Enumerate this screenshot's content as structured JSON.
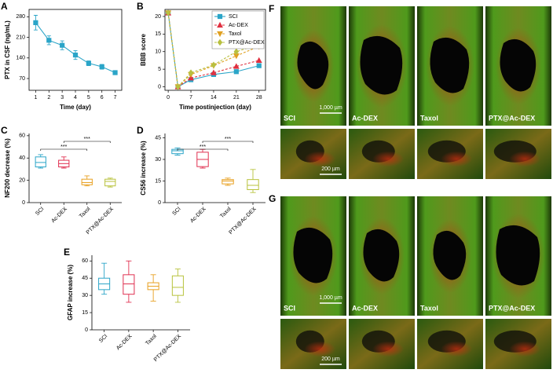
{
  "chart_data": [
    {
      "panel": "A",
      "type": "line",
      "xlabel": "Time (day)",
      "ylabel": "PTX in CSF (ng/mL)",
      "x": [
        1,
        2,
        3,
        4,
        5,
        6,
        7
      ],
      "series": [
        {
          "color": "#2ba5c8",
          "marker": "square",
          "values": [
            260,
            200,
            183,
            150,
            122,
            110,
            90
          ],
          "errors": [
            25,
            15,
            15,
            15,
            8,
            8,
            5
          ]
        }
      ],
      "xlim": [
        0.5,
        7.5
      ],
      "xticks": [
        1,
        2,
        3,
        4,
        5,
        6,
        7
      ],
      "ylim": [
        30,
        305
      ],
      "yticks": [
        70,
        140,
        210,
        280
      ]
    },
    {
      "panel": "B",
      "type": "line",
      "xlabel": "Time postinjection (day)",
      "ylabel": "BBB score",
      "x": [
        0,
        3,
        7,
        14,
        21,
        28
      ],
      "legend": "upper right",
      "series": [
        {
          "name": "SCI",
          "color": "#2ba5c8",
          "marker": "square",
          "linestyle": "solid",
          "values": [
            21,
            0,
            2,
            3.5,
            4.3,
            6
          ]
        },
        {
          "name": "Ac-DEX",
          "color": "#e03040",
          "marker": "triangle",
          "linestyle": "dashed",
          "values": [
            21,
            0,
            2.5,
            4,
            5.8,
            7.5
          ]
        },
        {
          "name": "Taxol",
          "color": "#e0a020",
          "marker": "triangle-down",
          "linestyle": "dashed",
          "values": [
            21,
            0,
            3.5,
            6,
            8.8,
            11.5
          ]
        },
        {
          "name": "PTX@Ac-DEX",
          "color": "#b8c040",
          "marker": "diamond",
          "linestyle": "dashed",
          "values": [
            21,
            0,
            4,
            6.2,
            10,
            12
          ]
        }
      ],
      "xlim": [
        -1,
        30
      ],
      "xticks": [
        0,
        7,
        14,
        21,
        28
      ],
      "ylim": [
        -1,
        22
      ],
      "yticks": [
        0,
        5,
        10,
        15,
        20
      ]
    },
    {
      "panel": "C",
      "type": "box",
      "ylabel": "NF200 decrease (%)",
      "categories": [
        "SCI",
        "Ac-DEX",
        "Taxol",
        "PTX@Ac-DEX"
      ],
      "colors": [
        "#2ba5c8",
        "#e03050",
        "#e8a020",
        "#b8c23c"
      ],
      "boxes": [
        {
          "min": 31,
          "q1": 32,
          "median": 36,
          "q3": 41,
          "max": 43
        },
        {
          "min": 31,
          "q1": 32,
          "median": 35,
          "q3": 38,
          "max": 41
        },
        {
          "min": 15,
          "q1": 16,
          "median": 18,
          "q3": 21,
          "max": 24
        },
        {
          "min": 14,
          "q1": 15,
          "median": 19,
          "q3": 21,
          "max": 22
        }
      ],
      "ylim": [
        0,
        62
      ],
      "yticks": [
        0,
        20,
        40,
        60
      ],
      "annotations": [
        "***",
        "***"
      ]
    },
    {
      "panel": "D",
      "type": "box",
      "ylabel": "CS56 increase (%)",
      "categories": [
        "SCI",
        "Ac-DEX",
        "Taxol",
        "PTX@Ac-DEX"
      ],
      "colors": [
        "#2ba5c8",
        "#e03050",
        "#e8a020",
        "#b8c23c"
      ],
      "boxes": [
        {
          "min": 33,
          "q1": 34,
          "median": 36,
          "q3": 37,
          "max": 38
        },
        {
          "min": 24,
          "q1": 25,
          "median": 30,
          "q3": 35,
          "max": 37
        },
        {
          "min": 12,
          "q1": 13,
          "median": 15,
          "q3": 16,
          "max": 17
        },
        {
          "min": 7,
          "q1": 9,
          "median": 12,
          "q3": 16,
          "max": 23
        }
      ],
      "ylim": [
        0,
        48
      ],
      "yticks": [
        0,
        15,
        30,
        45
      ],
      "annotations": [
        "***",
        "***"
      ]
    },
    {
      "panel": "E",
      "type": "box",
      "ylabel": "GFAP increase (%)",
      "categories": [
        "SCI",
        "Ac-DEX",
        "Taxol",
        "PTX@Ac-DEX"
      ],
      "colors": [
        "#2ba5c8",
        "#e03050",
        "#e8a020",
        "#b8c23c"
      ],
      "boxes": [
        {
          "min": 31,
          "q1": 35,
          "median": 40,
          "q3": 45,
          "max": 58
        },
        {
          "min": 24,
          "q1": 31,
          "median": 40,
          "q3": 48,
          "max": 60
        },
        {
          "min": 25,
          "q1": 35,
          "median": 38,
          "q3": 41,
          "max": 48
        },
        {
          "min": 24,
          "q1": 30,
          "median": 37,
          "q3": 47,
          "max": 53
        }
      ],
      "ylim": [
        0,
        65
      ],
      "yticks": [
        0,
        15,
        30,
        45,
        60
      ]
    }
  ],
  "figures": [
    {
      "panel": "F",
      "labels": [
        "SCI",
        "Ac-DEX",
        "Taxol",
        "PTX@Ac-DEX"
      ],
      "scale_bars": [
        "1,000 µm",
        "200 µm"
      ]
    },
    {
      "panel": "G",
      "labels": [
        "SCI",
        "Ac-DEX",
        "Taxol",
        "PTX@Ac-DEX"
      ],
      "scale_bars": [
        "1,000 µm",
        "200 µm"
      ]
    }
  ]
}
